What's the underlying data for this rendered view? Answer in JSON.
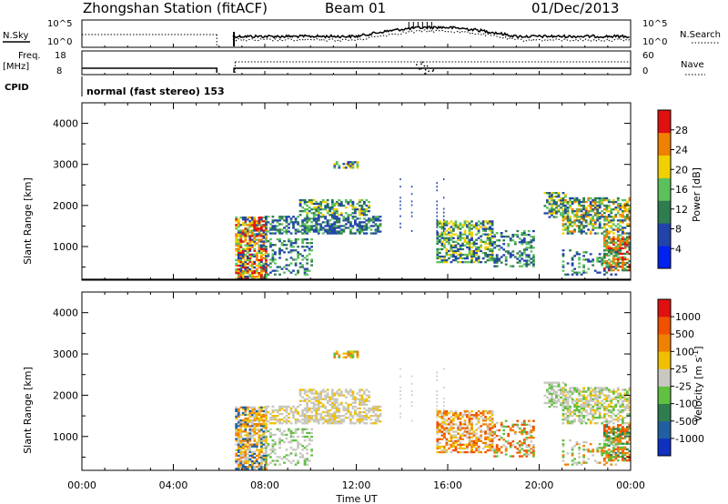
{
  "header": {
    "station": "Zhongshan Station (fitACF)",
    "beam": "Beam 01",
    "date": "01/Dec/2013"
  },
  "strip_labels": {
    "nsky": "N.Sky",
    "nsky_ticks": [
      "10^5",
      "10^0"
    ],
    "nsearch": "N.Search",
    "nsearch_ticks": [
      "10^5",
      "10^0"
    ],
    "freq": "Freq.",
    "freq_unit": "[MHz]",
    "freq_ticks": [
      "18",
      "8"
    ],
    "nave": "Nave",
    "nave_ticks": [
      "60",
      "0"
    ],
    "cpid": "CPID",
    "cpid_text": "normal (fast stereo) 153"
  },
  "chart_data": [
    {
      "type": "heatmap",
      "name": "power",
      "ylabel": "Slant Range [km]",
      "xlabel": "Time UT",
      "x_ticks": [
        "00:00",
        "04:00",
        "08:00",
        "12:00",
        "16:00",
        "20:00",
        "00:00"
      ],
      "y_ticks": [
        "1000",
        "2000",
        "3000",
        "4000"
      ],
      "ylim": [
        180,
        4500
      ],
      "colorbar_label": "Power [dB]",
      "colorbar_ticks": [
        "28",
        "24",
        "20",
        "16",
        "12",
        "8",
        "4"
      ],
      "colors": [
        "#0022ee",
        "#2244aa",
        "#2e7d4f",
        "#5cc05c",
        "#f0d000",
        "#f08000",
        "#e01010"
      ]
    },
    {
      "type": "heatmap",
      "name": "velocity",
      "ylabel": "Slant Range [km]",
      "xlabel": "Time UT",
      "x_ticks": [
        "00:00",
        "04:00",
        "08:00",
        "12:00",
        "16:00",
        "20:00",
        "00:00"
      ],
      "y_ticks": [
        "1000",
        "2000",
        "3000",
        "4000"
      ],
      "ylim": [
        180,
        4500
      ],
      "colorbar_label": "Velocity [m s",
      "colorbar_label_sup": "-1",
      "colorbar_label_end": "]",
      "colorbar_ticks": [
        "1000",
        "500",
        "100",
        "25",
        "-25",
        "-100",
        "-500",
        "-1000"
      ],
      "colors": [
        "#1030c0",
        "#2060a0",
        "#2e7d4f",
        "#60c040",
        "#c8c8c0",
        "#f0c000",
        "#f08000",
        "#f05000",
        "#e01010"
      ]
    }
  ],
  "time_axis_label": "Time UT"
}
